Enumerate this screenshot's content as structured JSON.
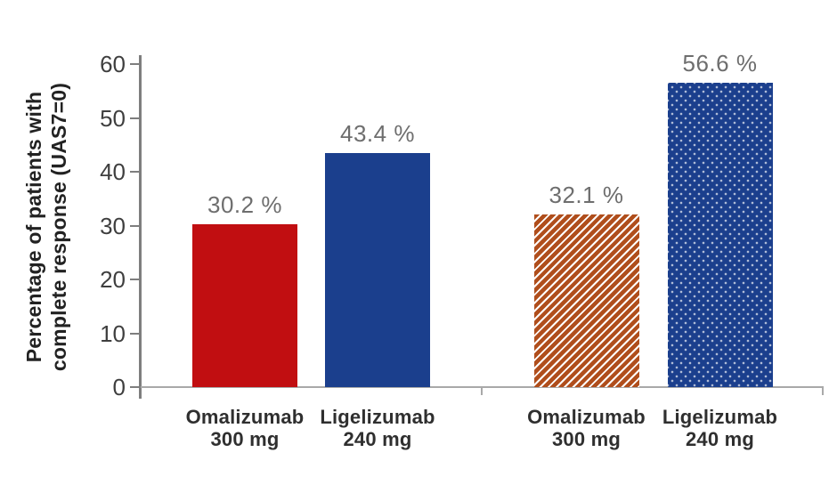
{
  "chart_data": {
    "type": "bar",
    "title": "",
    "ylabel": "Percentage of patients with\ncomplete response (UAS7=0)",
    "xlabel": "",
    "ylim": [
      0,
      60
    ],
    "yticks": [
      0,
      10,
      20,
      30,
      40,
      50,
      60
    ],
    "grid": false,
    "legend": "none",
    "groups": [
      {
        "bars": [
          {
            "drug": "Omalizumab",
            "dose": "300 mg",
            "value": 30.2,
            "value_label": "30.2 %",
            "style": "solid-red"
          },
          {
            "drug": "Ligelizumab",
            "dose": "240 mg",
            "value": 43.4,
            "value_label": "43.4 %",
            "style": "solid-blue"
          }
        ]
      },
      {
        "bars": [
          {
            "drug": "Omalizumab",
            "dose": "300 mg",
            "value": 32.1,
            "value_label": "32.1 %",
            "style": "hatched-orange"
          },
          {
            "drug": "Ligelizumab",
            "dose": "240 mg",
            "value": 56.6,
            "value_label": "56.6 %",
            "style": "dotted-blue"
          }
        ]
      }
    ],
    "colors": {
      "red": "#C10E11",
      "blue": "#1B3F8D",
      "orange": "#B04E1C",
      "axis": "#7E7E7E",
      "baseline": "#A9A9A9",
      "tick_text": "#3F3F3F",
      "value_text": "#6E6E6E",
      "label_text": "#2F2F2F",
      "title_text": "#222222"
    }
  }
}
